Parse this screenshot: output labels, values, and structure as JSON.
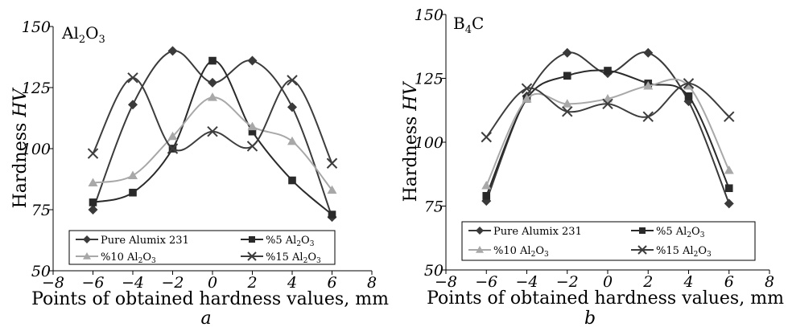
{
  "colors": {
    "pure": "#3a3a3a",
    "al5": "#2a2a2a",
    "al10": "#a8a8a8",
    "al15": "#3d3d3d",
    "axis": "#000000"
  },
  "chart_data": [
    {
      "type": "line",
      "title": "Al2O3",
      "title_main": "Al",
      "title_sub1": "2",
      "title_mid": "O",
      "title_sub2": "3",
      "panel_label": "a",
      "xlabel": "Points of obtained hardness values, mm",
      "ylabel_text": "Hardness ",
      "ylabel_var": "HV",
      "xlim": [
        -8,
        8
      ],
      "ylim": [
        50,
        150
      ],
      "xticks": [
        "−8",
        "−6",
        "−4",
        "−2",
        "0",
        "2",
        "4",
        "6",
        "8"
      ],
      "yticks": [
        "50",
        "75",
        "100",
        "125",
        "150"
      ],
      "x": [
        -6,
        -4,
        -2,
        0,
        2,
        4,
        6
      ],
      "series": [
        {
          "name": "Pure Alumix 231",
          "marker": "diamond",
          "values": [
            75,
            118,
            140,
            127,
            136,
            117,
            72
          ]
        },
        {
          "name": "%5 Al2O3",
          "name_parts": [
            "%5 Al",
            "2",
            "O",
            "3"
          ],
          "marker": "square",
          "values": [
            78,
            82,
            100,
            136,
            107,
            87,
            73
          ]
        },
        {
          "name": "%10 Al2O3",
          "name_parts": [
            "%10 Al",
            "2",
            "O",
            "3"
          ],
          "marker": "triangle",
          "values": [
            86,
            89,
            105,
            121,
            109,
            103,
            83
          ]
        },
        {
          "name": "%15 Al2O3",
          "name_parts": [
            "%15 Al",
            "2",
            "O",
            "3"
          ],
          "marker": "x",
          "values": [
            98,
            129,
            100,
            107,
            101,
            128,
            94
          ]
        }
      ]
    },
    {
      "type": "line",
      "title": "B4C",
      "title_main": "B",
      "title_sub1": "4",
      "title_mid": "C",
      "panel_label": "b",
      "xlabel": "Points of obtained hardness values, mm",
      "ylabel_text": "Hardness ",
      "ylabel_var": "HV",
      "xlim": [
        -8,
        8
      ],
      "ylim": [
        50,
        150
      ],
      "xticks": [
        "−8",
        "−6",
        "−4",
        "−2",
        "0",
        "2",
        "4",
        "6",
        "8"
      ],
      "yticks": [
        "50",
        "75",
        "100",
        "125",
        "150"
      ],
      "x": [
        -6,
        -4,
        -2,
        0,
        2,
        4,
        6
      ],
      "series": [
        {
          "name": "Pure Alumix 231",
          "marker": "diamond",
          "values": [
            77,
            118,
            135,
            127,
            135,
            116,
            76
          ]
        },
        {
          "name": "%5 Al2O3",
          "name_parts": [
            "%5 Al",
            "2",
            "O",
            "3"
          ],
          "marker": "square",
          "values": [
            79,
            117,
            126,
            128,
            123,
            118,
            82
          ]
        },
        {
          "name": "%10 Al2O3",
          "name_parts": [
            "%10 Al",
            "2",
            "O",
            "3"
          ],
          "marker": "triangle",
          "values": [
            83,
            117,
            115,
            117,
            122,
            122,
            89
          ]
        },
        {
          "name": "%15 Al2O3",
          "name_parts": [
            "%15 Al",
            "2",
            "O",
            "3"
          ],
          "marker": "x",
          "values": [
            102,
            121,
            112,
            115,
            110,
            123,
            110
          ]
        }
      ]
    }
  ]
}
